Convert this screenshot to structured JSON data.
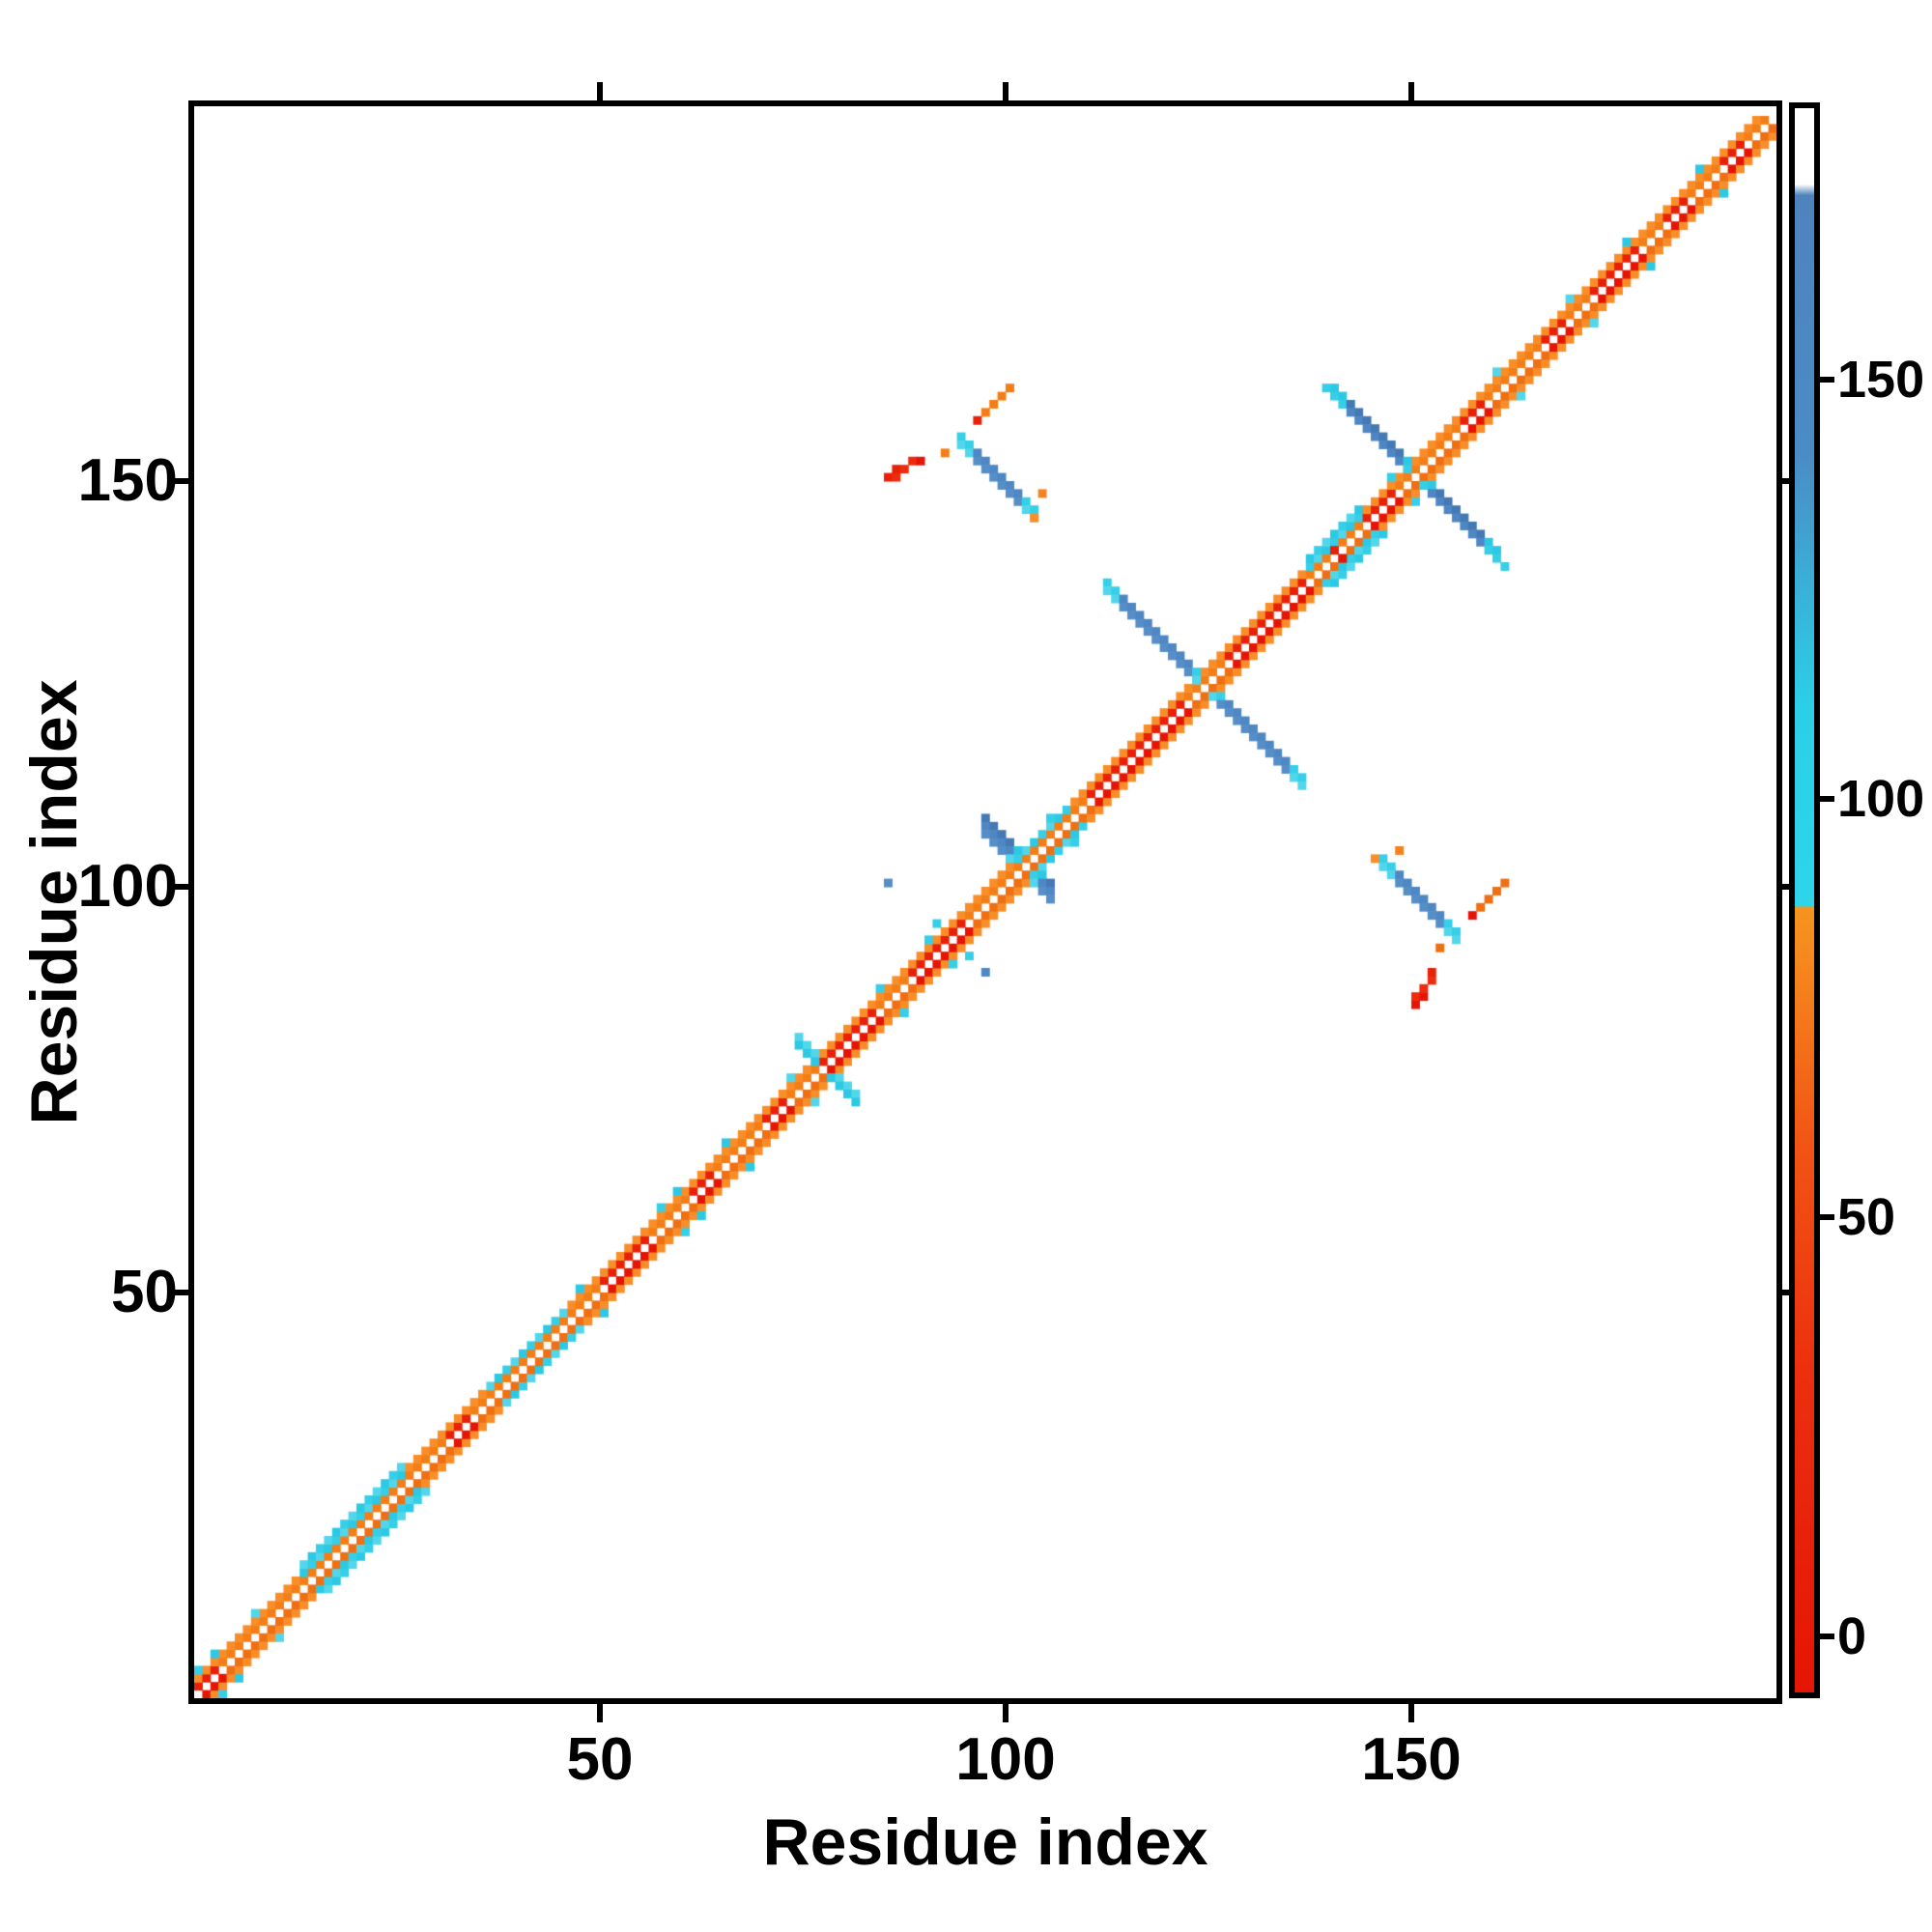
{
  "chart_data": {
    "type": "heatmap",
    "subtype": "protein-contact-map",
    "xlabel": "Residue index",
    "ylabel": "Residue index",
    "n_residues": 195,
    "x_axis_range": [
      0,
      195
    ],
    "y_axis_range": [
      0,
      195
    ],
    "x_ticks": [
      "50",
      "100",
      "150"
    ],
    "y_ticks": [
      "50",
      "100",
      "150"
    ],
    "x_tick_values": [
      50,
      100,
      150
    ],
    "y_tick_values": [
      50,
      100,
      150
    ],
    "grid": false,
    "background": "#ffffff",
    "palette": {
      "O": [
        "#F58220",
        "#EF6F13",
        "#F98E29",
        "#F57D15"
      ],
      "R": [
        "#EE2B0D",
        "#E51505",
        "#F2420F",
        "#E92008"
      ],
      "C": [
        "#35CFE8",
        "#2BC9E4",
        "#52D6EC"
      ],
      "B": [
        "#4E87C3",
        "#4579B3",
        "#568EC8"
      ],
      "W": [
        "#FFFFFF"
      ]
    },
    "diagonal_is_white": true,
    "band_offsets": [
      1,
      2
    ],
    "band_segments": [
      {
        "from": 0,
        "to": 3,
        "inner": "R",
        "outer": "O",
        "cyan3": false
      },
      {
        "from": 3,
        "to": 13,
        "inner": "O",
        "outer": "O",
        "cyan3": false
      },
      {
        "from": 13,
        "to": 26,
        "inner": "O",
        "outer": "C",
        "cyan3": true
      },
      {
        "from": 26,
        "to": 31,
        "inner": "O",
        "outer": "O",
        "cyan3": false
      },
      {
        "from": 31,
        "to": 34,
        "inner": "R",
        "outer": "O",
        "cyan3": false
      },
      {
        "from": 34,
        "to": 36,
        "inner": "O",
        "outer": "O",
        "cyan3": false
      },
      {
        "from": 36,
        "to": 46,
        "inner": "O",
        "outer": "C",
        "cyan3": false
      },
      {
        "from": 46,
        "to": 50,
        "inner": "O",
        "outer": "O",
        "cyan3": false
      },
      {
        "from": 50,
        "to": 56,
        "inner": "R",
        "outer": "O",
        "cyan3": false
      },
      {
        "from": 56,
        "to": 61,
        "inner": "O",
        "outer": "O",
        "cyan3": false
      },
      {
        "from": 61,
        "to": 64,
        "inner": "R",
        "outer": "O",
        "cyan3": false
      },
      {
        "from": 64,
        "to": 70,
        "inner": "O",
        "outer": "O",
        "cyan3": false
      },
      {
        "from": 70,
        "to": 73,
        "inner": "R",
        "outer": "O",
        "cyan3": false
      },
      {
        "from": 73,
        "to": 77,
        "inner": "O",
        "outer": "O",
        "cyan3": false
      },
      {
        "from": 77,
        "to": 84,
        "inner": "R",
        "outer": "O",
        "cyan3": false
      },
      {
        "from": 84,
        "to": 88,
        "inner": "O",
        "outer": "O",
        "cyan3": false
      },
      {
        "from": 88,
        "to": 95,
        "inner": "R",
        "outer": "O",
        "cyan3": false
      },
      {
        "from": 95,
        "to": 101,
        "inner": "O",
        "outer": "O",
        "cyan3": false
      },
      {
        "from": 101,
        "to": 108,
        "inner": "O",
        "outer": "C",
        "cyan3": false
      },
      {
        "from": 108,
        "to": 110,
        "inner": "O",
        "outer": "O",
        "cyan3": false
      },
      {
        "from": 110,
        "to": 122,
        "inner": "R",
        "outer": "O",
        "cyan3": false
      },
      {
        "from": 122,
        "to": 127,
        "inner": "O",
        "outer": "O",
        "cyan3": false
      },
      {
        "from": 127,
        "to": 137,
        "inner": "R",
        "outer": "O",
        "cyan3": false
      },
      {
        "from": 137,
        "to": 144,
        "inner": "O",
        "outer": "C",
        "cyan3": true
      },
      {
        "from": 144,
        "to": 148,
        "inner": "R",
        "outer": "O",
        "cyan3": false
      },
      {
        "from": 148,
        "to": 156,
        "inner": "O",
        "outer": "O",
        "cyan3": false
      },
      {
        "from": 156,
        "to": 159,
        "inner": "R",
        "outer": "O",
        "cyan3": false
      },
      {
        "from": 159,
        "to": 166,
        "inner": "O",
        "outer": "O",
        "cyan3": false
      },
      {
        "from": 166,
        "to": 169,
        "inner": "R",
        "outer": "O",
        "cyan3": false
      },
      {
        "from": 169,
        "to": 172,
        "inner": "O",
        "outer": "O",
        "cyan3": false
      },
      {
        "from": 172,
        "to": 178,
        "inner": "R",
        "outer": "O",
        "cyan3": false
      },
      {
        "from": 178,
        "to": 181,
        "inner": "O",
        "outer": "O",
        "cyan3": false
      },
      {
        "from": 181,
        "to": 184,
        "inner": "R",
        "outer": "O",
        "cyan3": false
      },
      {
        "from": 184,
        "to": 188,
        "inner": "O",
        "outer": "O",
        "cyan3": false
      },
      {
        "from": 188,
        "to": 191,
        "inner": "R",
        "outer": "O",
        "cyan3": false
      },
      {
        "from": 191,
        "to": 195,
        "inner": "O",
        "outer": "O",
        "cyan3": false
      }
    ],
    "streaks": [
      {
        "i": 112,
        "j": 137,
        "len": 25,
        "w": 2,
        "type": "anti",
        "color": "B",
        "head_c": 2,
        "tail_c": 2
      },
      {
        "i": 140,
        "j": 161,
        "len": 21,
        "w": 2,
        "type": "anti",
        "color": "B",
        "head_c": 2,
        "tail_c": 2
      },
      {
        "i": 97,
        "j": 108,
        "len": 9,
        "w": 3,
        "type": "anti",
        "color": "B",
        "head_c": 0,
        "tail_c": 0
      },
      {
        "i": 74,
        "j": 81,
        "len": 8,
        "w": 2,
        "type": "anti",
        "color": "C",
        "head_c": 0,
        "tail_c": 0
      },
      {
        "i": 94,
        "j": 155,
        "len": 10,
        "w": 2,
        "type": "anti",
        "color": "B",
        "head_c": 2,
        "tail_c": 2
      },
      {
        "i": 146,
        "j": 103,
        "len": 10,
        "w": 2,
        "type": "anti",
        "color": "B",
        "head_c": 2,
        "tail_c": 2
      },
      {
        "i": 96,
        "j": 157,
        "len": 5,
        "w": 1,
        "type": "para",
        "color": "O",
        "head": "R"
      },
      {
        "i": 157,
        "j": 96,
        "len": 5,
        "w": 1,
        "type": "para",
        "color": "O",
        "head": "R"
      }
    ],
    "cyan_flecks": [
      [
        0,
        3
      ],
      [
        3,
        0
      ],
      [
        2,
        5
      ],
      [
        5,
        2
      ],
      [
        7,
        10
      ],
      [
        10,
        7
      ],
      [
        47,
        50
      ],
      [
        50,
        47
      ],
      [
        57,
        60
      ],
      [
        60,
        57
      ],
      [
        59,
        62
      ],
      [
        62,
        59
      ],
      [
        65,
        68
      ],
      [
        68,
        65
      ],
      [
        73,
        76
      ],
      [
        76,
        73
      ],
      [
        84,
        87
      ],
      [
        87,
        84
      ],
      [
        90,
        93
      ],
      [
        93,
        90
      ],
      [
        91,
        95
      ],
      [
        95,
        91
      ],
      [
        105,
        108
      ],
      [
        108,
        105
      ],
      [
        147,
        150
      ],
      [
        150,
        147
      ],
      [
        160,
        163
      ],
      [
        163,
        160
      ],
      [
        169,
        172
      ],
      [
        172,
        169
      ],
      [
        176,
        179
      ],
      [
        179,
        176
      ],
      [
        185,
        188
      ],
      [
        188,
        185
      ]
    ],
    "extra_cells": [
      [
        85,
        150,
        "R"
      ],
      [
        86,
        150,
        "R"
      ],
      [
        86,
        151,
        "R"
      ],
      [
        87,
        151,
        "R"
      ],
      [
        88,
        152,
        "R"
      ],
      [
        89,
        152,
        "R"
      ],
      [
        150,
        85,
        "R"
      ],
      [
        150,
        86,
        "R"
      ],
      [
        151,
        86,
        "R"
      ],
      [
        151,
        87,
        "R"
      ],
      [
        152,
        88,
        "R"
      ],
      [
        152,
        89,
        "R"
      ],
      [
        92,
        153,
        "O"
      ],
      [
        153,
        92,
        "O"
      ],
      [
        104,
        148,
        "O"
      ],
      [
        148,
        104,
        "O"
      ],
      [
        103,
        145,
        "O"
      ],
      [
        145,
        103,
        "O"
      ],
      [
        85,
        100,
        "B"
      ],
      [
        97,
        89,
        "B"
      ],
      [
        139,
        161,
        "C"
      ],
      [
        161,
        139,
        "C"
      ],
      [
        140,
        141,
        "R"
      ],
      [
        141,
        140,
        "R"
      ]
    ],
    "colorbar": {
      "ticks": [
        "0",
        "50",
        "100",
        "150"
      ],
      "tick_values": [
        0,
        50,
        100,
        150
      ],
      "value_range_bottom_to_top": [
        -7,
        183
      ],
      "stops_bottom_to_top": [
        [
          0.0,
          "#E41505"
        ],
        [
          0.2,
          "#EC2F0E"
        ],
        [
          0.35,
          "#F15614"
        ],
        [
          0.46,
          "#F5871E"
        ],
        [
          0.495,
          "#F5941F"
        ],
        [
          0.497,
          "#2ED5E9"
        ],
        [
          0.62,
          "#2BD0E8"
        ],
        [
          0.7,
          "#3AAFD7"
        ],
        [
          0.78,
          "#4A8CC6"
        ],
        [
          0.945,
          "#4E83BE"
        ],
        [
          0.952,
          "#FFFFFF"
        ],
        [
          1.0,
          "#FFFFFF"
        ]
      ]
    }
  }
}
